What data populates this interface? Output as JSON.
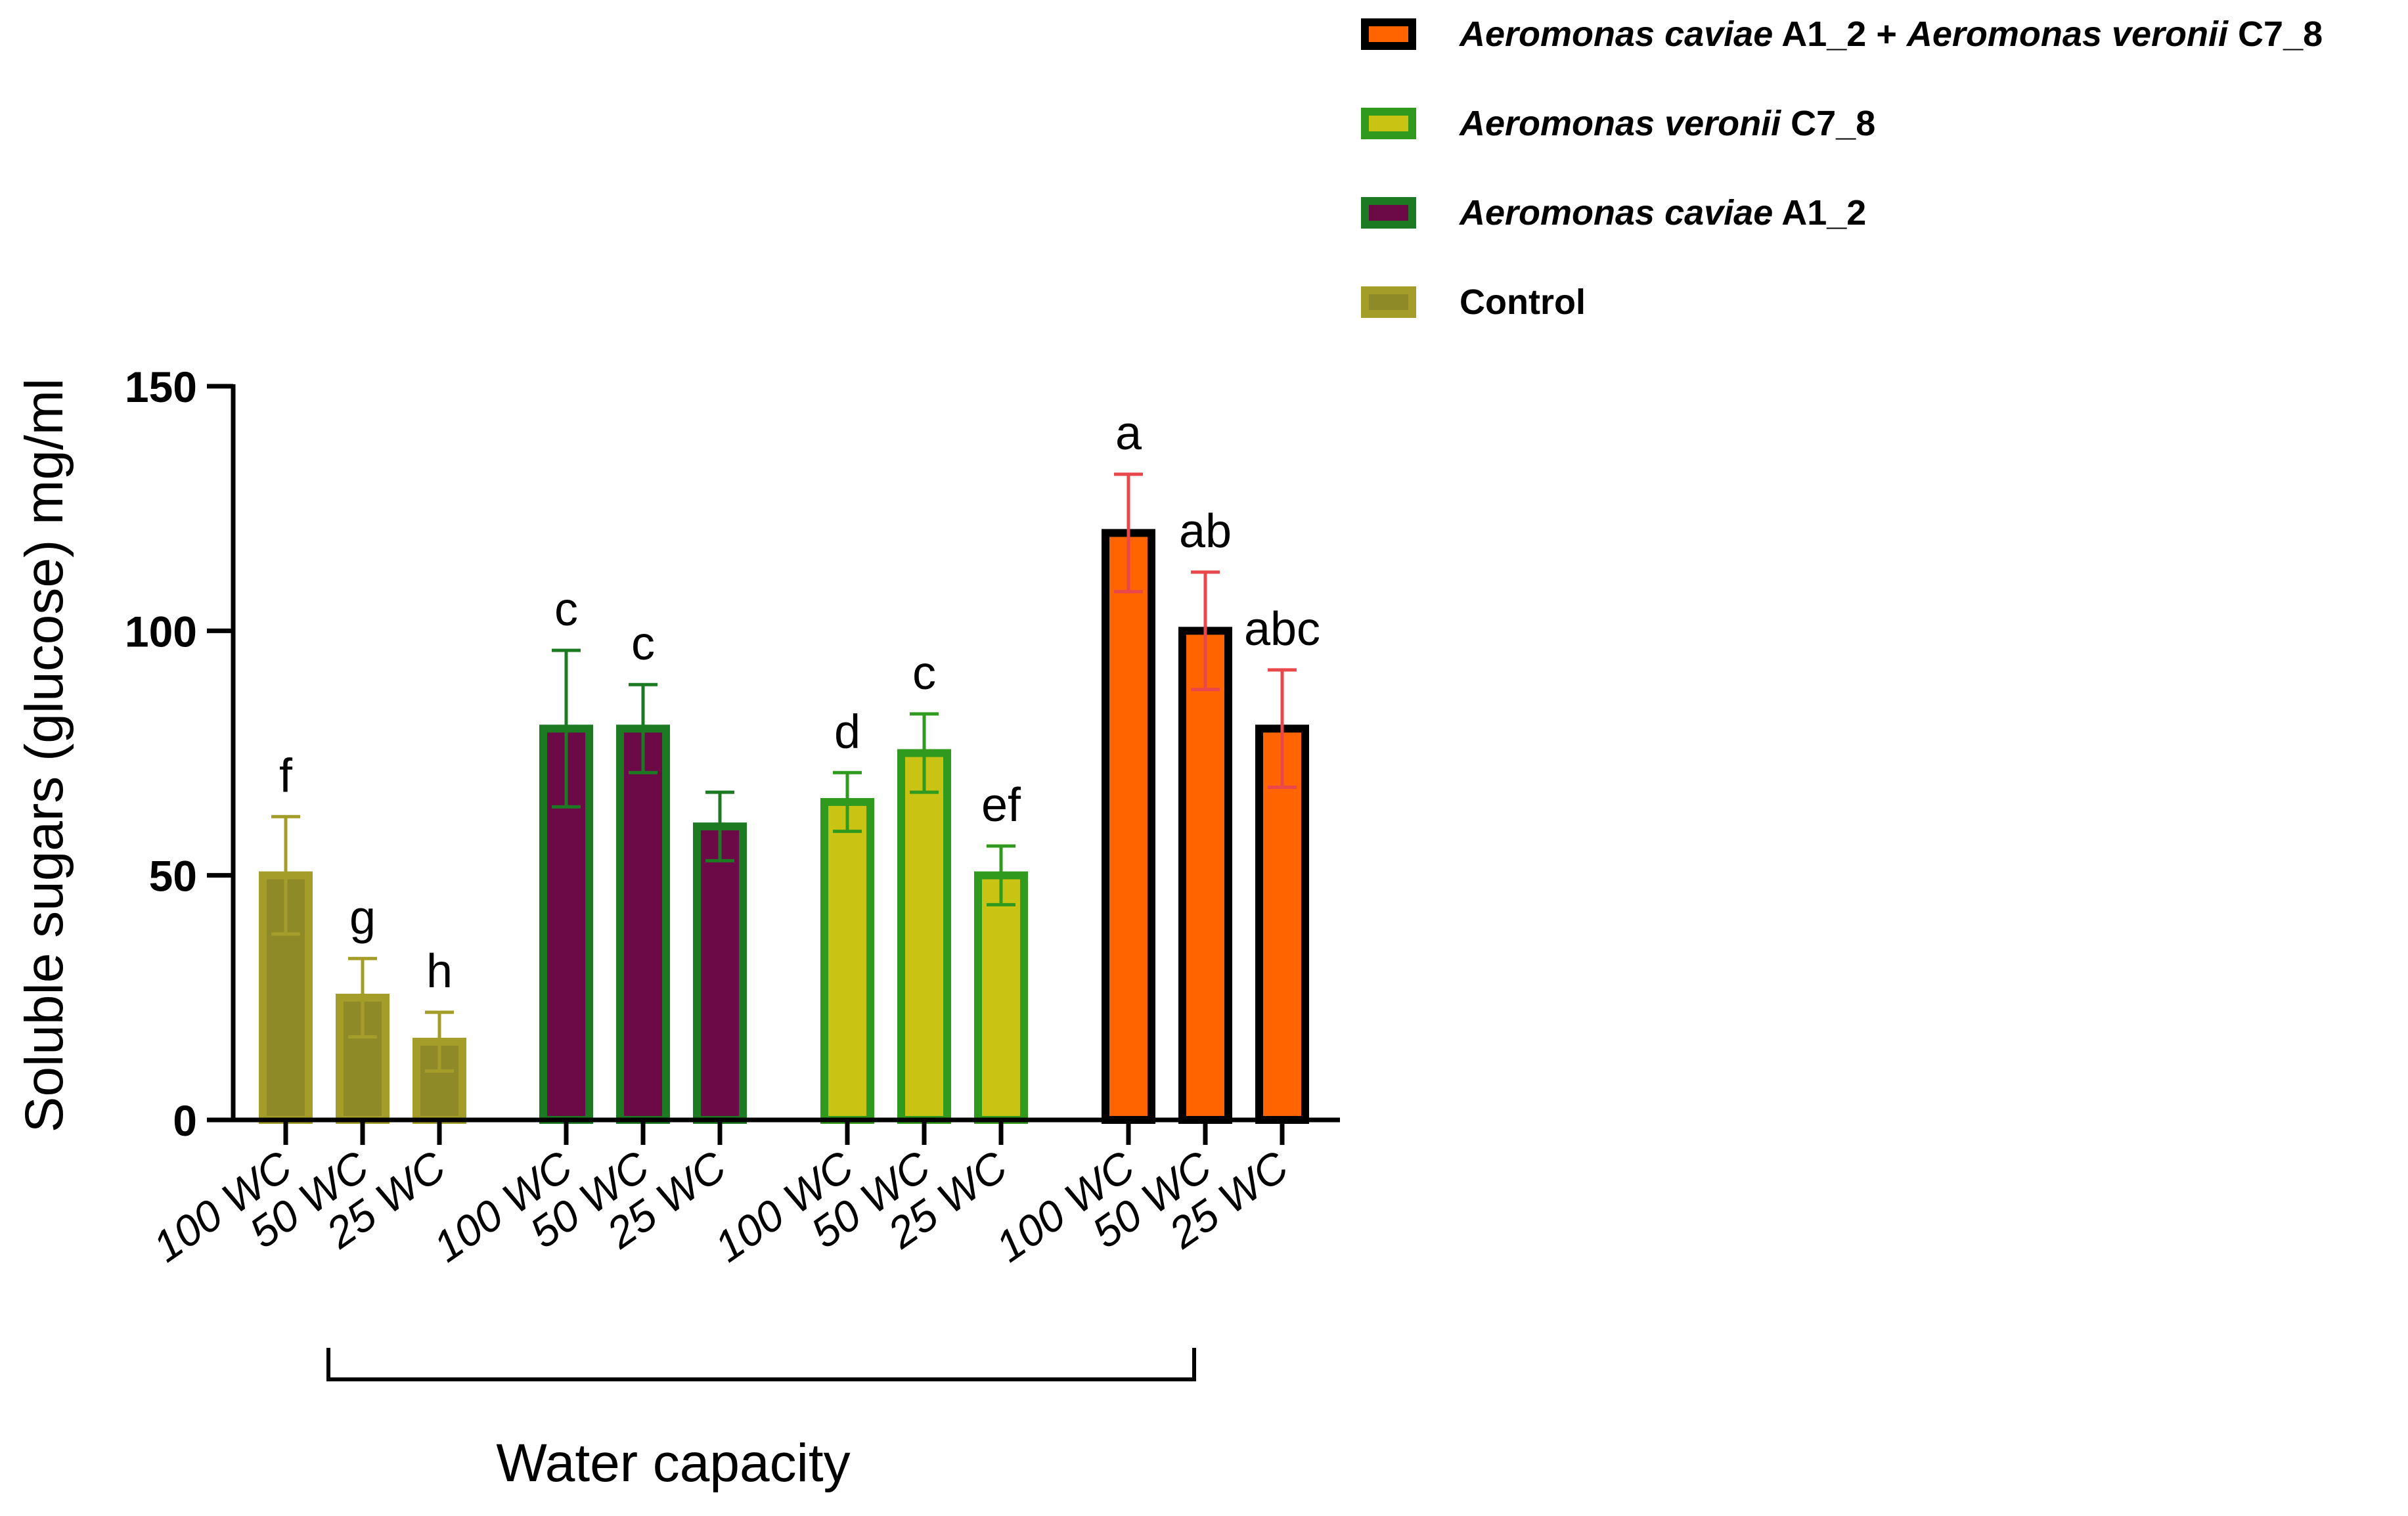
{
  "chart_data": {
    "type": "bar",
    "title": "",
    "ylabel": "Soluble sugars (glucose) mg/ml",
    "xlabel": "Water capacity",
    "ylim": [
      0,
      150
    ],
    "yticks": [
      0,
      50,
      100,
      150
    ],
    "y_tick_labels": [
      "0",
      "50",
      "100",
      "150"
    ],
    "grid": false,
    "legend_position": "top-right",
    "categories": [
      "100 WC",
      "50 WC",
      "25 WC"
    ],
    "groups": [
      {
        "name": "Control",
        "fill": "#8f8a28",
        "edge": "#a59d2a",
        "err_color": "#a59d2a",
        "values": [
          50,
          25,
          16
        ],
        "errors": [
          12,
          8,
          6
        ],
        "labels": [
          "f",
          "g",
          "h"
        ],
        "tick_labels": [
          "100 WC",
          "50 WC",
          "25 WC"
        ]
      },
      {
        "name": "Aeromonas caviae A1_2",
        "fill": "#6b0a46",
        "edge": "#1c7a22",
        "err_color": "#1c7a22",
        "values": [
          80,
          80,
          60
        ],
        "errors": [
          16,
          9,
          7
        ],
        "labels": [
          "c",
          "c",
          ""
        ],
        "tick_labels": [
          "100 WC",
          "50 WC",
          "25 WC"
        ]
      },
      {
        "name": "Aeromonas veronii C7_8",
        "fill": "#c9c414",
        "edge": "#2f9a1e",
        "err_color": "#2f9a1e",
        "values": [
          65,
          75,
          50
        ],
        "errors": [
          6,
          8,
          6
        ],
        "labels": [
          "d",
          "c",
          "ef"
        ],
        "tick_labels": [
          "100 WC",
          "50 WC",
          "25 WC"
        ]
      },
      {
        "name": "Aeromonas caviae A1_2 + Aeromonas veronii C7_8",
        "fill": "#ff6400",
        "edge": "#000000",
        "err_color": "#e8474b",
        "values": [
          120,
          100,
          80
        ],
        "errors": [
          12,
          12,
          12
        ],
        "labels": [
          "a",
          "ab",
          "abc"
        ],
        "tick_labels": [
          "100 WC",
          "50 WC",
          "25 WC"
        ]
      }
    ],
    "legend": [
      {
        "parts": [
          {
            "t": "Aeromonas caviae",
            "i": true
          },
          {
            "t": " A1_2 + ",
            "i": false
          },
          {
            "t": "Aeromonas veronii",
            "i": true
          },
          {
            "t": " C7_8",
            "i": false
          }
        ],
        "fill": "#ff6400",
        "edge": "#000000"
      },
      {
        "parts": [
          {
            "t": "Aeromonas veronii",
            "i": true
          },
          {
            "t": " C7_8",
            "i": false
          }
        ],
        "fill": "#c9c414",
        "edge": "#2f9a1e"
      },
      {
        "parts": [
          {
            "t": "Aeromonas caviae",
            "i": true
          },
          {
            "t": " A1_2",
            "i": false
          }
        ],
        "fill": "#6b0a46",
        "edge": "#1c7a22"
      },
      {
        "parts": [
          {
            "t": "Control",
            "i": false
          }
        ],
        "fill": "#8f8a28",
        "edge": "#a59d2a"
      }
    ]
  }
}
